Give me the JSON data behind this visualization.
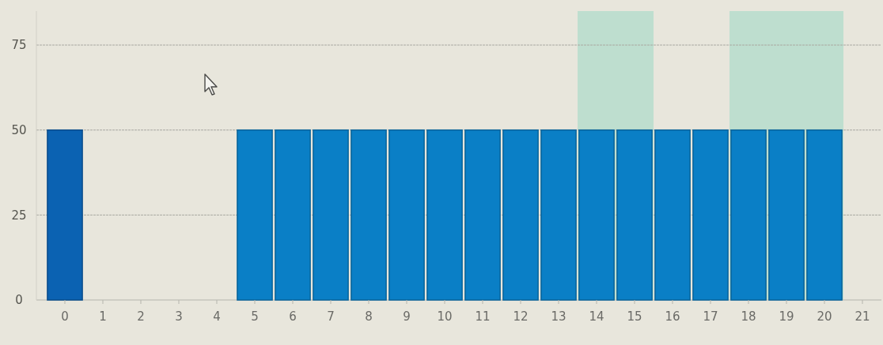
{
  "chart_data": {
    "type": "bar",
    "x": [
      0,
      5,
      6,
      7,
      8,
      9,
      10,
      11,
      12,
      13,
      14,
      15,
      16,
      17,
      18,
      19,
      20
    ],
    "values": [
      50,
      50,
      50,
      50,
      50,
      50,
      50,
      50,
      50,
      50,
      50,
      50,
      50,
      50,
      50,
      50,
      50
    ],
    "colors": [
      "#0b62b2",
      "#0a7fc6",
      "#0a7fc6",
      "#0a7fc6",
      "#0a7fc6",
      "#0a7fc6",
      "#0a7fc6",
      "#0a7fc6",
      "#0a7fc6",
      "#0a7fc6",
      "#0a7fc6",
      "#0a7fc6",
      "#0a7fc6",
      "#0a7fc6",
      "#0a7fc6",
      "#0a7fc6",
      "#0a7fc6"
    ],
    "xlim": [
      -0.75,
      21.5
    ],
    "xticks": [
      0,
      1,
      2,
      3,
      4,
      5,
      6,
      7,
      8,
      9,
      10,
      11,
      12,
      13,
      14,
      15,
      16,
      17,
      18,
      19,
      20,
      21
    ],
    "ylim": [
      0,
      85
    ],
    "yticks": [
      0,
      25,
      50,
      75
    ],
    "grid": "y",
    "bands": [
      {
        "axis": "x",
        "from": 13.5,
        "to": 15.5,
        "color": "#b6dccd"
      },
      {
        "axis": "x",
        "from": 17.5,
        "to": 20.5,
        "color": "#b6dccd"
      }
    ]
  }
}
